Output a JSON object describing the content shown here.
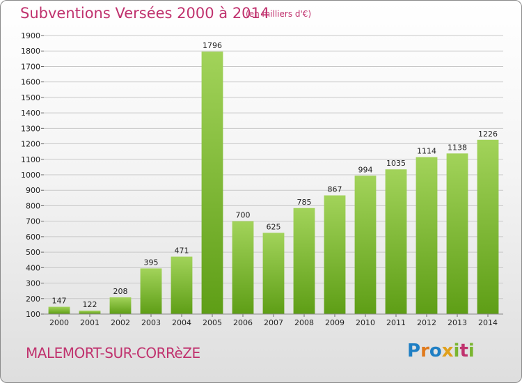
{
  "header": {
    "title": "Subventions Versées 2000 à 2014",
    "subtitle": "(en milliers d'€)"
  },
  "footer": {
    "city": "MALEMORT-SUR-CORRèZE",
    "logo_text": "Proxiti",
    "logo_letters": [
      {
        "ch": "P",
        "color": "#1f7fc4"
      },
      {
        "ch": "r",
        "color": "#e07a1c"
      },
      {
        "ch": "o",
        "color": "#1f7fc4"
      },
      {
        "ch": "x",
        "color": "#e0a01c"
      },
      {
        "ch": "i",
        "color": "#7ab530"
      },
      {
        "ch": "t",
        "color": "#c0326e"
      },
      {
        "ch": "i",
        "color": "#7ab530"
      }
    ]
  },
  "colors": {
    "bar_top": "#a2d35a",
    "bar_bottom": "#5e9e16",
    "grid": "#c8c8c8",
    "axis_text": "#222222",
    "title": "#c0326e"
  },
  "chart_data": {
    "type": "bar",
    "title": "Subventions Versées 2000 à 2014",
    "subtitle": "(en milliers d'€)",
    "xlabel": "",
    "ylabel": "",
    "categories": [
      "2000",
      "2001",
      "2002",
      "2003",
      "2004",
      "2005",
      "2006",
      "2007",
      "2008",
      "2009",
      "2010",
      "2011",
      "2012",
      "2013",
      "2014"
    ],
    "values": [
      147,
      122,
      208,
      395,
      471,
      1796,
      700,
      625,
      785,
      867,
      994,
      1035,
      1114,
      1138,
      1226
    ],
    "data_labels": [
      "147",
      "122",
      "208",
      "395",
      "471",
      "1796",
      "700",
      "625",
      "785",
      "867",
      "994",
      "1035",
      "1114",
      "1138",
      "1226"
    ],
    "ylim": [
      100,
      1900
    ],
    "yticks": [
      100,
      200,
      300,
      400,
      500,
      600,
      700,
      800,
      900,
      1000,
      1100,
      1200,
      1300,
      1400,
      1500,
      1600,
      1700,
      1800,
      1900
    ],
    "ytick_labels": [
      "100",
      "200",
      "300",
      "400",
      "500",
      "600",
      "700",
      "800",
      "900",
      "1000",
      "1100",
      "1200",
      "1300",
      "1400",
      "1500",
      "1600",
      "1700",
      "1800",
      "1900"
    ],
    "grid": true,
    "legend": "none"
  }
}
